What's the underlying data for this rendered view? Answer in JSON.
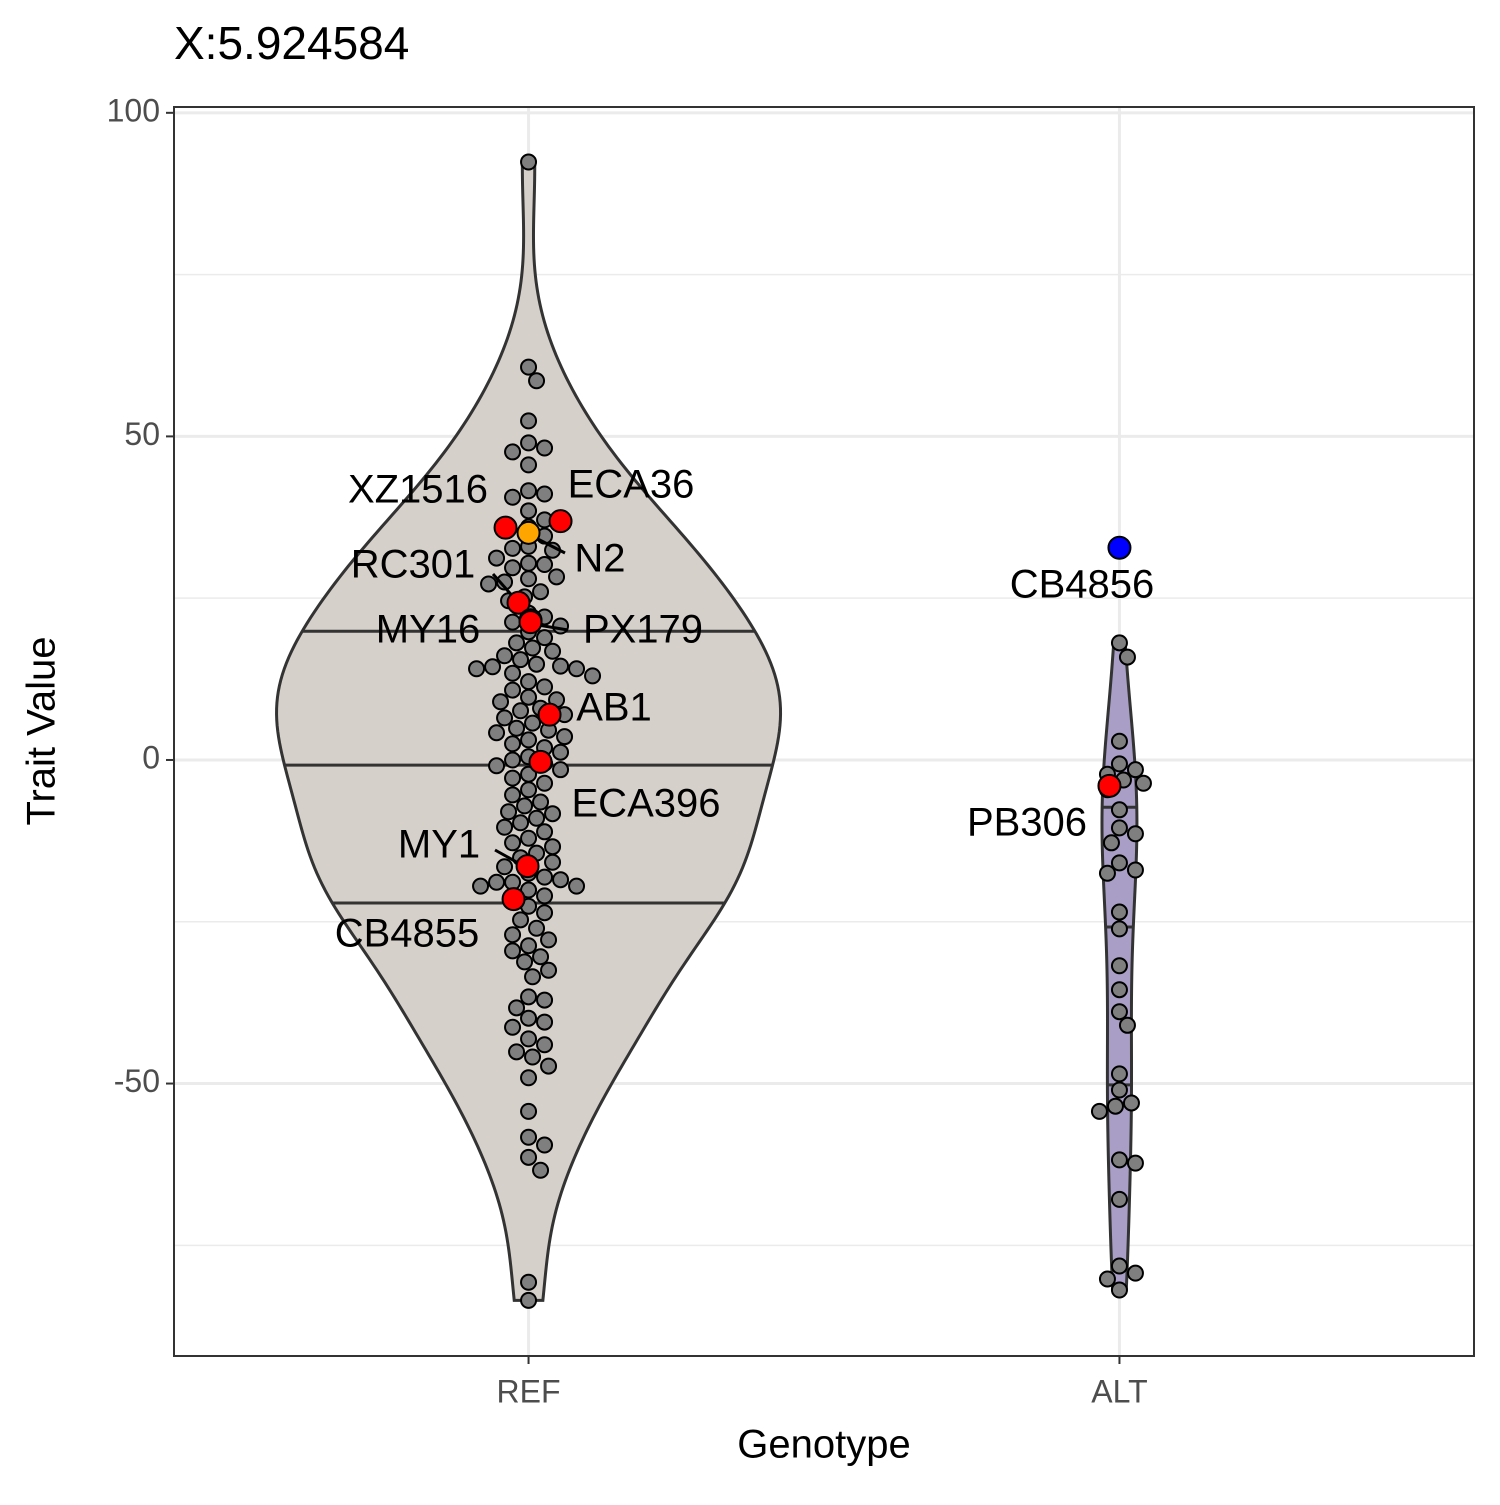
{
  "chart_data": {
    "type": "violin",
    "title": "X:5.924584",
    "x_label": "Genotype",
    "y_label": "Trait Value",
    "categories": [
      "REF",
      "ALT"
    ],
    "ylim": [
      -92.1,
      100.9
    ],
    "yticks": [
      -50,
      0,
      50,
      100
    ],
    "yticks_minor": [
      -75,
      -25,
      25,
      75
    ],
    "grid": true,
    "point_color": "#7f7f7f",
    "groups": [
      {
        "fill": "#d5d0ca",
        "quantiles": [
          -22.1,
          -0.8,
          19.9
        ],
        "values": [
          92.4,
          60.7,
          58.6,
          52.4,
          49,
          48.2,
          47.6,
          45.6,
          41.6,
          41.1,
          40.6,
          38.5,
          37.1,
          36,
          34.6,
          33,
          32.7,
          32.4,
          31.2,
          30.4,
          30.2,
          29.7,
          28.3,
          28,
          27.5,
          27.2,
          26,
          25.2,
          24.6,
          22.7,
          22.1,
          21.3,
          20.7,
          19.8,
          18.9,
          18.1,
          17.3,
          16.8,
          16.1,
          15.5,
          14.8,
          14.5,
          14.4,
          14.1,
          14.1,
          13.4,
          13,
          12.1,
          11.3,
          10.8,
          9.7,
          9.3,
          9,
          8,
          7.6,
          7,
          6.5,
          5.7,
          4.9,
          4.6,
          4.2,
          3.6,
          3.1,
          2.5,
          1.9,
          1.2,
          0.5,
          0,
          -0.5,
          -0.9,
          -1.5,
          -2.2,
          -2.8,
          -3.6,
          -4.6,
          -5.4,
          -6.5,
          -7.1,
          -8,
          -8.3,
          -9,
          -9.7,
          -10.4,
          -11.1,
          -12.1,
          -12.8,
          -13.4,
          -14.4,
          -15.1,
          -15.8,
          -16.5,
          -17.5,
          -18.1,
          -18.5,
          -18.9,
          -18.9,
          -19.5,
          -19.5,
          -20.1,
          -21,
          -21.6,
          -22.6,
          -23.6,
          -24.7,
          -26,
          -27,
          -27.8,
          -28.7,
          -29.5,
          -30.4,
          -31.2,
          -32.5,
          -33.5,
          -36.6,
          -37.1,
          -38.3,
          -39.9,
          -40.5,
          -41.3,
          -43.1,
          -44,
          -45.1,
          -45.9,
          -47.3,
          -49.1,
          -54.3,
          -58.3,
          -59.5,
          -61.4,
          -63.4,
          -80.7,
          -83.5
        ]
      },
      {
        "fill": "#a99fc6",
        "quantiles": [
          -50.2,
          -25.8,
          -7.3
        ],
        "values": [
          18.1,
          15.9,
          2.9,
          -0.6,
          -1.5,
          -2.2,
          -3.1,
          -3.6,
          -4.6,
          -7.7,
          -10.5,
          -11.4,
          -12.8,
          -15.9,
          -17,
          -17.5,
          -23.5,
          -26.1,
          -31.8,
          -35.5,
          -38.9,
          -41,
          -48.5,
          -51,
          -53,
          -53.5,
          -54.3,
          -61.8,
          -62.3,
          -67.9,
          -78.2,
          -79.3,
          -80.2,
          -81.9
        ]
      }
    ],
    "highlights": [
      {
        "strain": "XZ1516",
        "group": 0,
        "value": 35.9,
        "color": "#ff0000"
      },
      {
        "strain": "ECA36",
        "group": 0,
        "value": 36.9,
        "color": "#ff0000"
      },
      {
        "strain": "N2",
        "group": 0,
        "value": 35.1,
        "color": "#ffa500"
      },
      {
        "strain": "RC301",
        "group": 0,
        "value": 24.3,
        "color": "#ff0000"
      },
      {
        "strain": "MY16",
        "group": 0,
        "value": 21.6,
        "color": "#ff0000"
      },
      {
        "strain": "PX179",
        "group": 0,
        "value": 21.3,
        "color": "#ff0000"
      },
      {
        "strain": "AB1",
        "group": 0,
        "value": 7,
        "color": "#ff0000"
      },
      {
        "strain": "ECA396",
        "group": 0,
        "value": -0.3,
        "color": "#ff0000"
      },
      {
        "strain": "MY1",
        "group": 0,
        "value": -16.4,
        "color": "#ff0000"
      },
      {
        "strain": "CB4855",
        "group": 0,
        "value": -21.5,
        "color": "#ff0000"
      },
      {
        "strain": "CB4856",
        "group": 1,
        "value": 32.8,
        "color": "#0000ff"
      },
      {
        "strain": "PB306",
        "group": 1,
        "value": -4,
        "color": "#ff0000"
      }
    ]
  }
}
